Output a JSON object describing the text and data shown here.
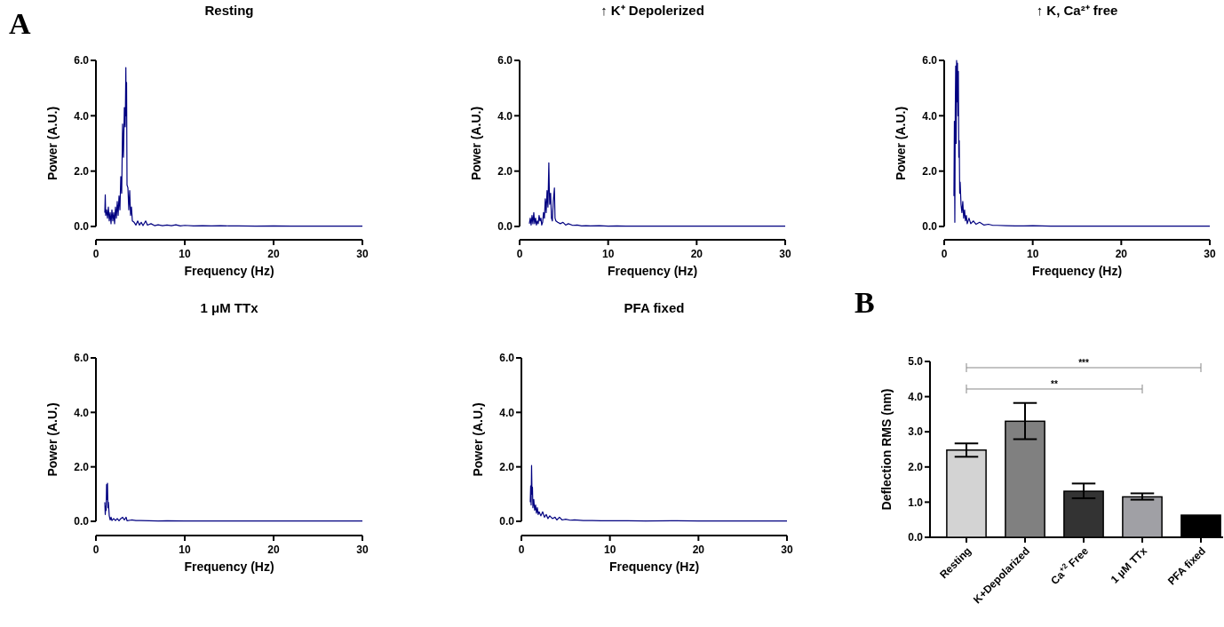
{
  "chart_data": [
    {
      "type": "line",
      "title": "Resting",
      "xlabel": "Frequency (Hz)",
      "ylabel": "Power (A.U.)",
      "annotations": [
        "A"
      ],
      "xlim": [
        0,
        30
      ],
      "xticks": [
        0,
        10,
        20,
        30
      ],
      "ylim": [
        0,
        6
      ],
      "yticks": [
        {
          "value": 0,
          "label": "0.0"
        },
        {
          "value": 2,
          "label": "2.0"
        },
        {
          "value": 4,
          "label": "4.0"
        },
        {
          "value": 6,
          "label": "6.0"
        }
      ],
      "grid": false,
      "series": [
        {
          "color": "#000080",
          "x": [
            1.0,
            1.05,
            1.1,
            1.2,
            1.3,
            1.4,
            1.5,
            1.6,
            1.7,
            1.8,
            1.9,
            2.0,
            2.1,
            2.2,
            2.3,
            2.4,
            2.5,
            2.6,
            2.7,
            2.8,
            2.9,
            3.0,
            3.1,
            3.2,
            3.3,
            3.37,
            3.4,
            3.45,
            3.5,
            3.6,
            3.7,
            3.8,
            3.9,
            4.0,
            4.1,
            4.3,
            4.5,
            4.7,
            4.9,
            5.1,
            5.3,
            5.6,
            5.8,
            6.2,
            6.6,
            7,
            7.5,
            8,
            8.5,
            9,
            9.5,
            10,
            11,
            12,
            13,
            14,
            15,
            16,
            18,
            20,
            22,
            24,
            26,
            28,
            30
          ],
          "values": [
            0.5,
            1.14,
            0.4,
            0.6,
            0.3,
            0.7,
            0.2,
            0.5,
            0.1,
            0.6,
            0.2,
            0.5,
            0.1,
            0.7,
            0.3,
            0.9,
            0.4,
            1.1,
            0.6,
            1.8,
            1.2,
            3.7,
            2.5,
            4.3,
            3.6,
            5.74,
            4.0,
            5.2,
            1.5,
            1.4,
            0.6,
            1.3,
            0.4,
            0.7,
            0.2,
            0.15,
            0.05,
            0.2,
            0.05,
            0.15,
            0.03,
            0.2,
            0.05,
            0.1,
            0.03,
            0.06,
            0.03,
            0.05,
            0.03,
            0.06,
            0.02,
            0.04,
            0.02,
            0.03,
            0.02,
            0.03,
            0.02,
            0.02,
            0.01,
            0.02,
            0.01,
            0.01,
            0.01,
            0.01,
            0.01
          ]
        }
      ]
    },
    {
      "type": "line",
      "title": "↑ K⁺ Depolerized",
      "xlabel": "Frequency (Hz)",
      "ylabel": "Power (A.U.)",
      "xlim": [
        0,
        30
      ],
      "xticks": [
        0,
        10,
        20,
        30
      ],
      "ylim": [
        0,
        6
      ],
      "yticks": [
        {
          "value": 0,
          "label": "0.0"
        },
        {
          "value": 2,
          "label": "2.0"
        },
        {
          "value": 4,
          "label": "4.0"
        },
        {
          "value": 6,
          "label": "6.0"
        }
      ],
      "grid": false,
      "series": [
        {
          "color": "#000080",
          "x": [
            1.1,
            1.2,
            1.3,
            1.4,
            1.5,
            1.6,
            1.7,
            1.8,
            1.9,
            2.0,
            2.1,
            2.2,
            2.3,
            2.4,
            2.5,
            2.6,
            2.7,
            2.8,
            2.9,
            3.0,
            3.1,
            3.2,
            3.3,
            3.35,
            3.4,
            3.5,
            3.6,
            3.7,
            3.8,
            3.93,
            4.0,
            4.1,
            4.3,
            4.6,
            4.9,
            5.2,
            5.5,
            6,
            6.5,
            7,
            7.5,
            8,
            9,
            10,
            11,
            12,
            14,
            16,
            20,
            25,
            30
          ],
          "values": [
            0.1,
            0.3,
            0.05,
            0.4,
            0.1,
            0.5,
            0.1,
            0.3,
            0.05,
            0.2,
            0.1,
            0.4,
            0.2,
            0.3,
            0.05,
            0.15,
            0.5,
            0.3,
            1.0,
            0.5,
            1.3,
            0.7,
            2.3,
            1.4,
            0.8,
            1.2,
            0.3,
            0.2,
            0.9,
            1.39,
            0.3,
            0.2,
            0.15,
            0.1,
            0.15,
            0.05,
            0.1,
            0.04,
            0.05,
            0.02,
            0.03,
            0.02,
            0.03,
            0.01,
            0.02,
            0.01,
            0.01,
            0.01,
            0.01,
            0.01,
            0.01
          ]
        }
      ]
    },
    {
      "type": "line",
      "title": "↑ K, Ca²⁺ free",
      "xlabel": "Frequency (Hz)",
      "ylabel": "Power (A.U.)",
      "xlim": [
        0,
        30
      ],
      "xticks": [
        0,
        10,
        20,
        30
      ],
      "ylim": [
        0,
        6
      ],
      "yticks": [
        {
          "value": 0,
          "label": "0.0"
        },
        {
          "value": 2,
          "label": "2.0"
        },
        {
          "value": 4,
          "label": "4.0"
        },
        {
          "value": 6,
          "label": "6.0"
        }
      ],
      "grid": false,
      "series": [
        {
          "color": "#000080",
          "x": [
            1.1,
            1.15,
            1.2,
            1.25,
            1.3,
            1.35,
            1.4,
            1.45,
            1.5,
            1.55,
            1.6,
            1.65,
            1.7,
            1.75,
            1.8,
            1.9,
            2.0,
            2.1,
            2.2,
            2.3,
            2.4,
            2.5,
            2.6,
            2.8,
            3.0,
            3.3,
            3.6,
            4.0,
            4.5,
            5,
            5.5,
            6,
            7,
            8,
            9,
            10,
            12,
            14,
            18,
            22,
            26,
            30
          ],
          "values": [
            1.1,
            3.8,
            0.15,
            4.2,
            5.8,
            3.0,
            6.0,
            4.5,
            5.9,
            4.0,
            5.6,
            2.5,
            3.1,
            1.2,
            1.6,
            0.8,
            0.5,
            0.9,
            0.3,
            0.6,
            0.2,
            0.4,
            0.1,
            0.3,
            0.1,
            0.2,
            0.08,
            0.15,
            0.05,
            0.08,
            0.04,
            0.04,
            0.03,
            0.02,
            0.02,
            0.03,
            0.01,
            0.01,
            0.01,
            0.01,
            0.01,
            0.01
          ]
        }
      ]
    },
    {
      "type": "line",
      "title": "1 μM TTx",
      "xlabel": "Frequency (Hz)",
      "ylabel": "Power (A.U.)",
      "xlim": [
        0,
        30
      ],
      "xticks": [
        0,
        10,
        20,
        30
      ],
      "ylim": [
        0,
        6
      ],
      "yticks": [
        {
          "value": 0,
          "label": "0.0"
        },
        {
          "value": 2,
          "label": "2.0"
        },
        {
          "value": 4,
          "label": "4.0"
        },
        {
          "value": 6,
          "label": "6.0"
        }
      ],
      "grid": false,
      "series": [
        {
          "color": "#000080",
          "x": [
            1.0,
            1.05,
            1.1,
            1.15,
            1.2,
            1.25,
            1.3,
            1.35,
            1.4,
            1.5,
            1.6,
            1.7,
            1.8,
            2.0,
            2.2,
            2.4,
            2.6,
            2.8,
            3.0,
            3.2,
            3.4,
            3.5,
            4,
            4.5,
            5,
            6,
            7,
            8,
            10,
            12,
            15,
            20,
            25,
            30
          ],
          "values": [
            0.7,
            0.25,
            0.55,
            0.4,
            1.35,
            0.8,
            1.4,
            0.5,
            0.7,
            0.2,
            0.05,
            0.15,
            0.03,
            0.1,
            0.03,
            0.1,
            0.02,
            0.1,
            0.15,
            0.05,
            0.15,
            0.02,
            0.05,
            0.03,
            0.03,
            0.02,
            0.01,
            0.02,
            0.01,
            0.01,
            0.01,
            0.01,
            0.01,
            0.01
          ]
        }
      ]
    },
    {
      "type": "line",
      "title": "PFA fixed",
      "xlabel": "Frequency (Hz)",
      "ylabel": "Power (A.U.)",
      "xlim": [
        0,
        30
      ],
      "xticks": [
        0,
        10,
        20,
        30
      ],
      "ylim": [
        0,
        6
      ],
      "yticks": [
        {
          "value": 0,
          "label": "0.0"
        },
        {
          "value": 2,
          "label": "2.0"
        },
        {
          "value": 4,
          "label": "4.0"
        },
        {
          "value": 6,
          "label": "6.0"
        }
      ],
      "grid": false,
      "series": [
        {
          "color": "#000080",
          "x": [
            1.0,
            1.05,
            1.1,
            1.15,
            1.2,
            1.25,
            1.3,
            1.4,
            1.5,
            1.6,
            1.7,
            1.8,
            1.9,
            2.0,
            2.2,
            2.4,
            2.6,
            2.8,
            3.0,
            3.2,
            3.5,
            3.8,
            4,
            4.3,
            4.6,
            5,
            5.5,
            6,
            7,
            8,
            9,
            10,
            12,
            14,
            17,
            20,
            24,
            27,
            30
          ],
          "values": [
            0.7,
            1.3,
            0.6,
            2.05,
            1.0,
            1.25,
            0.5,
            0.8,
            0.4,
            0.6,
            0.3,
            0.5,
            0.25,
            0.35,
            0.2,
            0.35,
            0.15,
            0.25,
            0.1,
            0.2,
            0.1,
            0.15,
            0.05,
            0.15,
            0.05,
            0.08,
            0.04,
            0.05,
            0.03,
            0.03,
            0.02,
            0.02,
            0.02,
            0.01,
            0.02,
            0.01,
            0.01,
            0.01,
            0.01
          ]
        }
      ]
    },
    {
      "type": "bar",
      "ylabel": "Deflection RMS (nm)",
      "categories": [
        "Resting",
        "K+Depolarized",
        "Ca$^{+2}$ Free",
        "1 µM TTx",
        "PFA fixed"
      ],
      "values": [
        2.48,
        3.3,
        1.31,
        1.15,
        0.63
      ],
      "colors": [
        "#d3d3d3",
        "#808080",
        "#333333",
        "#a0a0a5",
        "#000000"
      ],
      "errors": [
        [
          2.29,
          2.67
        ],
        [
          2.79,
          3.82
        ],
        [
          1.11,
          1.53
        ],
        [
          1.07,
          1.25
        ],
        null
      ],
      "ylim": [
        0,
        5
      ],
      "yticks": [
        {
          "value": 0,
          "label": "0.0"
        },
        {
          "value": 1,
          "label": "1.0"
        },
        {
          "value": 2,
          "label": "2.0"
        },
        {
          "value": 3,
          "label": "3.0"
        },
        {
          "value": 4,
          "label": "4.0"
        },
        {
          "value": 5,
          "label": "5.0"
        }
      ],
      "grid": false,
      "annotations": [
        "B",
        "***",
        "**"
      ]
    }
  ]
}
